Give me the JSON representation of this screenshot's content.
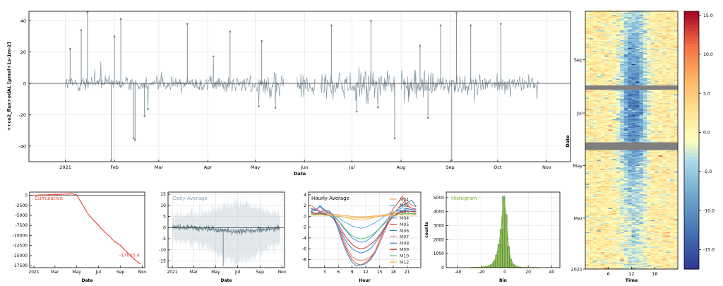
{
  "chart_data": [
    {
      "id": "timeseries",
      "type": "line",
      "ylabel": "++co2_flux+odAL  [µmol+1s-1m-2]",
      "xlabel": "Date",
      "ylim": [
        -50,
        46
      ],
      "yticks": [
        -40,
        -20,
        0,
        20,
        40
      ],
      "xticks": [
        {
          "label": "2021",
          "date": "2021-01-01"
        },
        {
          "label": "Feb",
          "date": "2021-02-01"
        },
        {
          "label": "Mar",
          "date": "2021-03-01"
        },
        {
          "label": "Apr",
          "date": "2021-04-01"
        },
        {
          "label": "May",
          "date": "2021-05-01"
        },
        {
          "label": "Jun",
          "date": "2021-06-01"
        },
        {
          "label": "Jul",
          "date": "2021-07-01"
        },
        {
          "label": "Aug",
          "date": "2021-08-01"
        },
        {
          "label": "Sep",
          "date": "2021-09-01"
        },
        {
          "label": "Oct",
          "date": "2021-10-01"
        },
        {
          "label": "Nov",
          "date": "2021-11-01"
        }
      ],
      "xrange": [
        "2020-12-09",
        "2021-11-16"
      ],
      "data_start": "2021-01-01",
      "data_end": "2021-10-27",
      "gaps": [
        [
          "2021-05-19",
          "2021-05-27"
        ],
        [
          "2021-06-08",
          "2021-06-11"
        ],
        [
          "2021-07-28",
          "2021-08-01"
        ]
      ],
      "outliers": [
        {
          "date": "2021-01-15",
          "value": 46
        },
        {
          "date": "2021-01-30",
          "value": -49
        },
        {
          "date": "2021-02-13",
          "value": -35
        },
        {
          "date": "2021-02-14",
          "value": -36
        },
        {
          "date": "2021-02-20",
          "value": -21
        },
        {
          "date": "2021-01-04",
          "value": 22
        },
        {
          "date": "2021-01-11",
          "value": 34
        },
        {
          "date": "2021-02-01",
          "value": 30
        },
        {
          "date": "2021-02-05",
          "value": 41
        },
        {
          "date": "2021-03-19",
          "value": 38
        },
        {
          "date": "2021-04-15",
          "value": 33
        },
        {
          "date": "2021-05-05",
          "value": 27
        },
        {
          "date": "2021-06-18",
          "value": 37
        },
        {
          "date": "2021-07-13",
          "value": 40
        },
        {
          "date": "2021-08-13",
          "value": 24
        },
        {
          "date": "2021-08-26",
          "value": 37
        },
        {
          "date": "2021-09-05",
          "value": 45
        },
        {
          "date": "2021-09-14",
          "value": 37
        },
        {
          "date": "2021-10-03",
          "value": 38
        },
        {
          "date": "2021-09-02",
          "value": -49
        },
        {
          "date": "2021-07-28",
          "value": -35
        },
        {
          "date": "2021-07-04",
          "value": -18
        },
        {
          "date": "2021-08-18",
          "value": -22
        }
      ],
      "color": "#6f8591"
    },
    {
      "id": "cumulative",
      "type": "line",
      "label": "Cumulative",
      "final_label": "-17065.4",
      "xlabel": "Date",
      "ylim": [
        -18000,
        800
      ],
      "yticks": [
        0,
        -2500,
        -5000,
        -7500,
        -10000,
        -12500,
        -15000,
        -17500
      ],
      "xticks": [
        {
          "label": "2021",
          "date": "2021-01-01"
        },
        {
          "label": "Mar",
          "date": "2021-03-01"
        },
        {
          "label": "May",
          "date": "2021-05-01"
        },
        {
          "label": "Jul",
          "date": "2021-07-01"
        },
        {
          "label": "Sep",
          "date": "2021-09-01"
        },
        {
          "label": "Nov",
          "date": "2021-11-01"
        }
      ],
      "xrange": [
        "2020-12-20",
        "2021-11-08"
      ],
      "x": [
        "2021-01-01",
        "2021-02-01",
        "2021-03-01",
        "2021-04-01",
        "2021-04-20",
        "2021-05-01",
        "2021-05-15",
        "2021-06-01",
        "2021-06-15",
        "2021-07-01",
        "2021-07-15",
        "2021-08-01",
        "2021-08-15",
        "2021-09-01",
        "2021-09-15",
        "2021-10-01",
        "2021-10-15",
        "2021-10-27"
      ],
      "values": [
        0,
        100,
        200,
        300,
        350,
        100,
        -2000,
        -4500,
        -6000,
        -7500,
        -8800,
        -10200,
        -11500,
        -12500,
        -13800,
        -15200,
        -16300,
        -17065
      ],
      "color": "#e8443a"
    },
    {
      "id": "daily",
      "type": "line",
      "label": "Daily Average",
      "xlabel": "Date",
      "ylim": [
        -18,
        16
      ],
      "yticks": [
        15,
        10,
        5,
        0,
        -5,
        -10,
        -15
      ],
      "xticks": [
        {
          "label": "2021",
          "date": "2021-01-01"
        },
        {
          "label": "Mar",
          "date": "2021-03-01"
        },
        {
          "label": "May",
          "date": "2021-05-01"
        },
        {
          "label": "Jul",
          "date": "2021-07-01"
        },
        {
          "label": "Sep",
          "date": "2021-09-01"
        },
        {
          "label": "Nov",
          "date": "2021-11-01"
        }
      ],
      "xrange": [
        "2020-12-20",
        "2021-11-08"
      ],
      "data_start": "2021-01-01",
      "data_end": "2021-10-27",
      "color": "#6f8591",
      "band_color": "#c9d3da"
    },
    {
      "id": "hourly",
      "type": "line",
      "label": "Hourly Average",
      "xlabel": "Hour",
      "ylim": [
        -9.5,
        4.5
      ],
      "yticks": [
        4,
        2,
        0,
        -2,
        -4,
        -6,
        -8
      ],
      "xticks": [
        3,
        6,
        9,
        12,
        15,
        18,
        21
      ],
      "xlim": [
        -0.5,
        24
      ],
      "series": [
        {
          "name": "M01",
          "color": "#f4a460",
          "values": [
            0.5,
            0.4,
            0.5,
            0.6,
            0.5,
            0.4,
            0.3,
            0.2,
            0.1,
            0.0,
            -0.1,
            -0.1,
            -0.1,
            0.0,
            0.1,
            0.2,
            0.3,
            0.4,
            0.5,
            0.5,
            0.6,
            0.5,
            0.5,
            0.4
          ]
        },
        {
          "name": "M02",
          "color": "#5dade2",
          "values": [
            1.0,
            1.2,
            0.8,
            0.5,
            0.6,
            0.2,
            -0.2,
            -0.8,
            -1.3,
            -1.8,
            -2.0,
            -2.2,
            -2.0,
            -1.6,
            -1.2,
            -0.6,
            0.0,
            0.5,
            0.8,
            1.0,
            1.1,
            1.0,
            0.9,
            1.0
          ]
        },
        {
          "name": "M03",
          "color": "#f0c060",
          "values": [
            0.6,
            0.5,
            0.7,
            0.6,
            0.5,
            0.4,
            0.2,
            -0.1,
            -0.3,
            -0.5,
            -0.6,
            -0.7,
            -0.6,
            -0.4,
            -0.2,
            0.0,
            0.2,
            0.4,
            0.5,
            0.6,
            0.6,
            0.5,
            0.6,
            0.6
          ]
        },
        {
          "name": "M04",
          "color": "#4a90d9",
          "values": [
            1.5,
            1.2,
            1.8,
            1.0,
            0.8,
            0.2,
            -0.8,
            -2.0,
            -3.0,
            -4.0,
            -4.5,
            -4.8,
            -4.6,
            -4.0,
            -3.2,
            -2.2,
            -1.2,
            -0.2,
            0.6,
            1.2,
            1.6,
            1.4,
            1.3,
            1.5
          ]
        },
        {
          "name": "M05",
          "color": "#e74c3c",
          "values": [
            1.0,
            1.5,
            0.8,
            1.2,
            0.5,
            -0.5,
            -2.0,
            -4.5,
            -6.5,
            -8.0,
            -8.8,
            -9.0,
            -8.5,
            -7.8,
            -6.5,
            -4.5,
            -2.5,
            -0.5,
            1.5,
            2.5,
            3.8,
            2.0,
            1.5,
            1.2
          ]
        },
        {
          "name": "M06",
          "color": "#2e86c1",
          "values": [
            1.5,
            1.0,
            2.0,
            1.2,
            1.0,
            0.0,
            -2.5,
            -5.0,
            -7.0,
            -8.5,
            -9.2,
            -9.0,
            -8.8,
            -8.0,
            -6.8,
            -5.0,
            -3.0,
            -1.0,
            0.5,
            1.5,
            2.0,
            2.5,
            3.0,
            1.8
          ]
        },
        {
          "name": "M07",
          "color": "#e67e73",
          "values": [
            2.0,
            1.5,
            1.0,
            0.8,
            0.5,
            -0.5,
            -2.0,
            -4.0,
            -6.0,
            -7.5,
            -8.0,
            -8.2,
            -8.0,
            -7.5,
            -6.5,
            -5.0,
            -3.0,
            -1.0,
            0.5,
            1.5,
            2.5,
            3.0,
            2.0,
            1.8
          ]
        },
        {
          "name": "M08",
          "color": "#3a7bd5",
          "values": [
            1.0,
            0.5,
            0.8,
            0.5,
            0.2,
            -0.5,
            -2.0,
            -3.5,
            -5.0,
            -6.0,
            -6.5,
            -6.8,
            -6.5,
            -6.0,
            -5.0,
            -3.8,
            -2.5,
            -1.0,
            0.0,
            0.8,
            1.0,
            1.5,
            1.2,
            1.0
          ]
        },
        {
          "name": "M09",
          "color": "#c0392b",
          "values": [
            0.8,
            0.5,
            0.6,
            0.4,
            0.2,
            -0.3,
            -1.5,
            -3.0,
            -4.2,
            -5.2,
            -5.8,
            -6.0,
            -5.8,
            -5.2,
            -4.5,
            -3.5,
            -2.2,
            -1.0,
            0.0,
            0.5,
            0.8,
            1.0,
            0.9,
            0.8
          ]
        },
        {
          "name": "M10",
          "color": "#52be80",
          "values": [
            0.5,
            0.3,
            0.4,
            0.3,
            0.1,
            -0.2,
            -0.8,
            -1.8,
            -2.8,
            -3.6,
            -4.0,
            -4.2,
            -4.0,
            -3.6,
            -3.0,
            -2.2,
            -1.4,
            -0.6,
            0.0,
            0.3,
            0.4,
            0.6,
            0.5,
            0.5
          ]
        },
        {
          "name": "M12",
          "color": "#f5b041",
          "values": [
            0.3,
            0.2,
            0.3,
            0.2,
            0.2,
            0.1,
            0.0,
            -0.1,
            -0.2,
            -0.3,
            -0.3,
            -0.3,
            -0.3,
            -0.2,
            -0.1,
            0.0,
            0.1,
            0.2,
            0.2,
            0.3,
            0.3,
            0.3,
            0.3,
            0.3
          ]
        }
      ]
    },
    {
      "id": "histogram",
      "type": "bar",
      "label": "Histogram",
      "xlabel": "Bin",
      "ylabel": "counts",
      "ylim": [
        0,
        5400
      ],
      "yticks": [
        0,
        1000,
        2000,
        3000,
        4000,
        5000
      ],
      "xticks": [
        -40,
        -20,
        0,
        20,
        40
      ],
      "xlim": [
        -50,
        47
      ],
      "bins_start": -30,
      "bin_width": 2,
      "counts": [
        5,
        8,
        12,
        18,
        25,
        40,
        60,
        95,
        150,
        250,
        450,
        900,
        1650,
        2750,
        5100,
        3800,
        1500,
        600,
        250,
        120,
        60,
        35,
        20,
        12,
        8,
        5,
        3,
        2,
        1,
        1
      ],
      "color": "#8fbc5a",
      "edge": "#3d5a1e",
      "kde": "#7ab648"
    },
    {
      "id": "heatmap",
      "type": "heatmap",
      "xlabel": "Time",
      "ylabel": "Date",
      "xticks": [
        6,
        12,
        18
      ],
      "yticks": [
        {
          "label": "2021",
          "date": "2021-01-01"
        },
        {
          "label": "Mar",
          "date": "2021-03-01"
        },
        {
          "label": "May",
          "date": "2021-05-01"
        },
        {
          "label": "Jul",
          "date": "2021-07-01"
        },
        {
          "label": "Sep",
          "date": "2021-09-01"
        }
      ],
      "yrange": [
        "2021-01-01",
        "2021-10-27"
      ],
      "gap_rows": [
        [
          "2021-05-19",
          "2021-05-27"
        ],
        [
          "2021-07-28",
          "2021-08-01"
        ]
      ],
      "colorbar_ticks": [
        15.0,
        10.0,
        5.0,
        0.0,
        -5.0,
        -10.0,
        -15.0
      ],
      "vlim": [
        -17.5,
        15.5
      ],
      "gap_color": "#7f7f7f"
    }
  ]
}
